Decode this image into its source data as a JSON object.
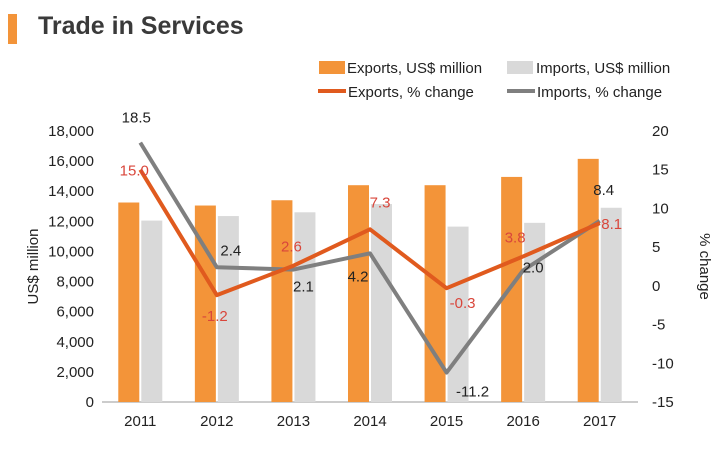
{
  "header": {
    "title": "Trade in Services"
  },
  "colors": {
    "accent": "#f39439",
    "exports_bar": "#f39439",
    "imports_bar": "#d9d9d9",
    "exports_line": "#e05a1e",
    "imports_line": "#7f7f7f",
    "exports_label": "#d9463b",
    "imports_label": "#222222",
    "axis": "#999999"
  },
  "chart_data": {
    "type": "bar+line",
    "title": "Trade in Services",
    "categories": [
      "2011",
      "2012",
      "2013",
      "2014",
      "2015",
      "2016",
      "2017"
    ],
    "ylabel_left": "US$ million",
    "ylabel_right": "% change",
    "ylim_left": [
      0,
      18000
    ],
    "ylim_right": [
      -15,
      20
    ],
    "left_ticks": [
      "0",
      "2,000",
      "4,000",
      "6,000",
      "8,000",
      "10,000",
      "12,000",
      "14,000",
      "16,000",
      "18,000"
    ],
    "left_tick_values": [
      0,
      2000,
      4000,
      6000,
      8000,
      10000,
      12000,
      14000,
      16000,
      18000
    ],
    "right_ticks": [
      "-15",
      "-10",
      "-5",
      "0",
      "5",
      "10",
      "15",
      "20"
    ],
    "right_tick_values": [
      -15,
      -10,
      -5,
      0,
      5,
      10,
      15,
      20
    ],
    "series": [
      {
        "name": "Exports, US$ million",
        "kind": "bar",
        "axis": "left",
        "values": [
          13250,
          13050,
          13400,
          14400,
          14400,
          14950,
          16150
        ]
      },
      {
        "name": "Imports, US$ million",
        "kind": "bar",
        "axis": "left",
        "values": [
          12050,
          12350,
          12600,
          13150,
          11650,
          11900,
          12900
        ]
      },
      {
        "name": "Exports, % change",
        "kind": "line",
        "axis": "right",
        "values": [
          15.0,
          -1.2,
          2.6,
          7.3,
          -0.3,
          3.8,
          8.1
        ],
        "labels": [
          "15.0",
          "-1.2",
          "2.6",
          "7.3",
          "-0.3",
          "3.8",
          "8.1"
        ]
      },
      {
        "name": "Imports, % change",
        "kind": "line",
        "axis": "right",
        "values": [
          18.5,
          2.4,
          2.1,
          4.2,
          -11.2,
          2.0,
          8.4
        ],
        "labels": [
          "18.5",
          "2.4",
          "2.1",
          "4.2",
          "-11.2",
          "2.0",
          "8.4"
        ]
      }
    ],
    "legend": {
      "placement": "top-right"
    }
  }
}
